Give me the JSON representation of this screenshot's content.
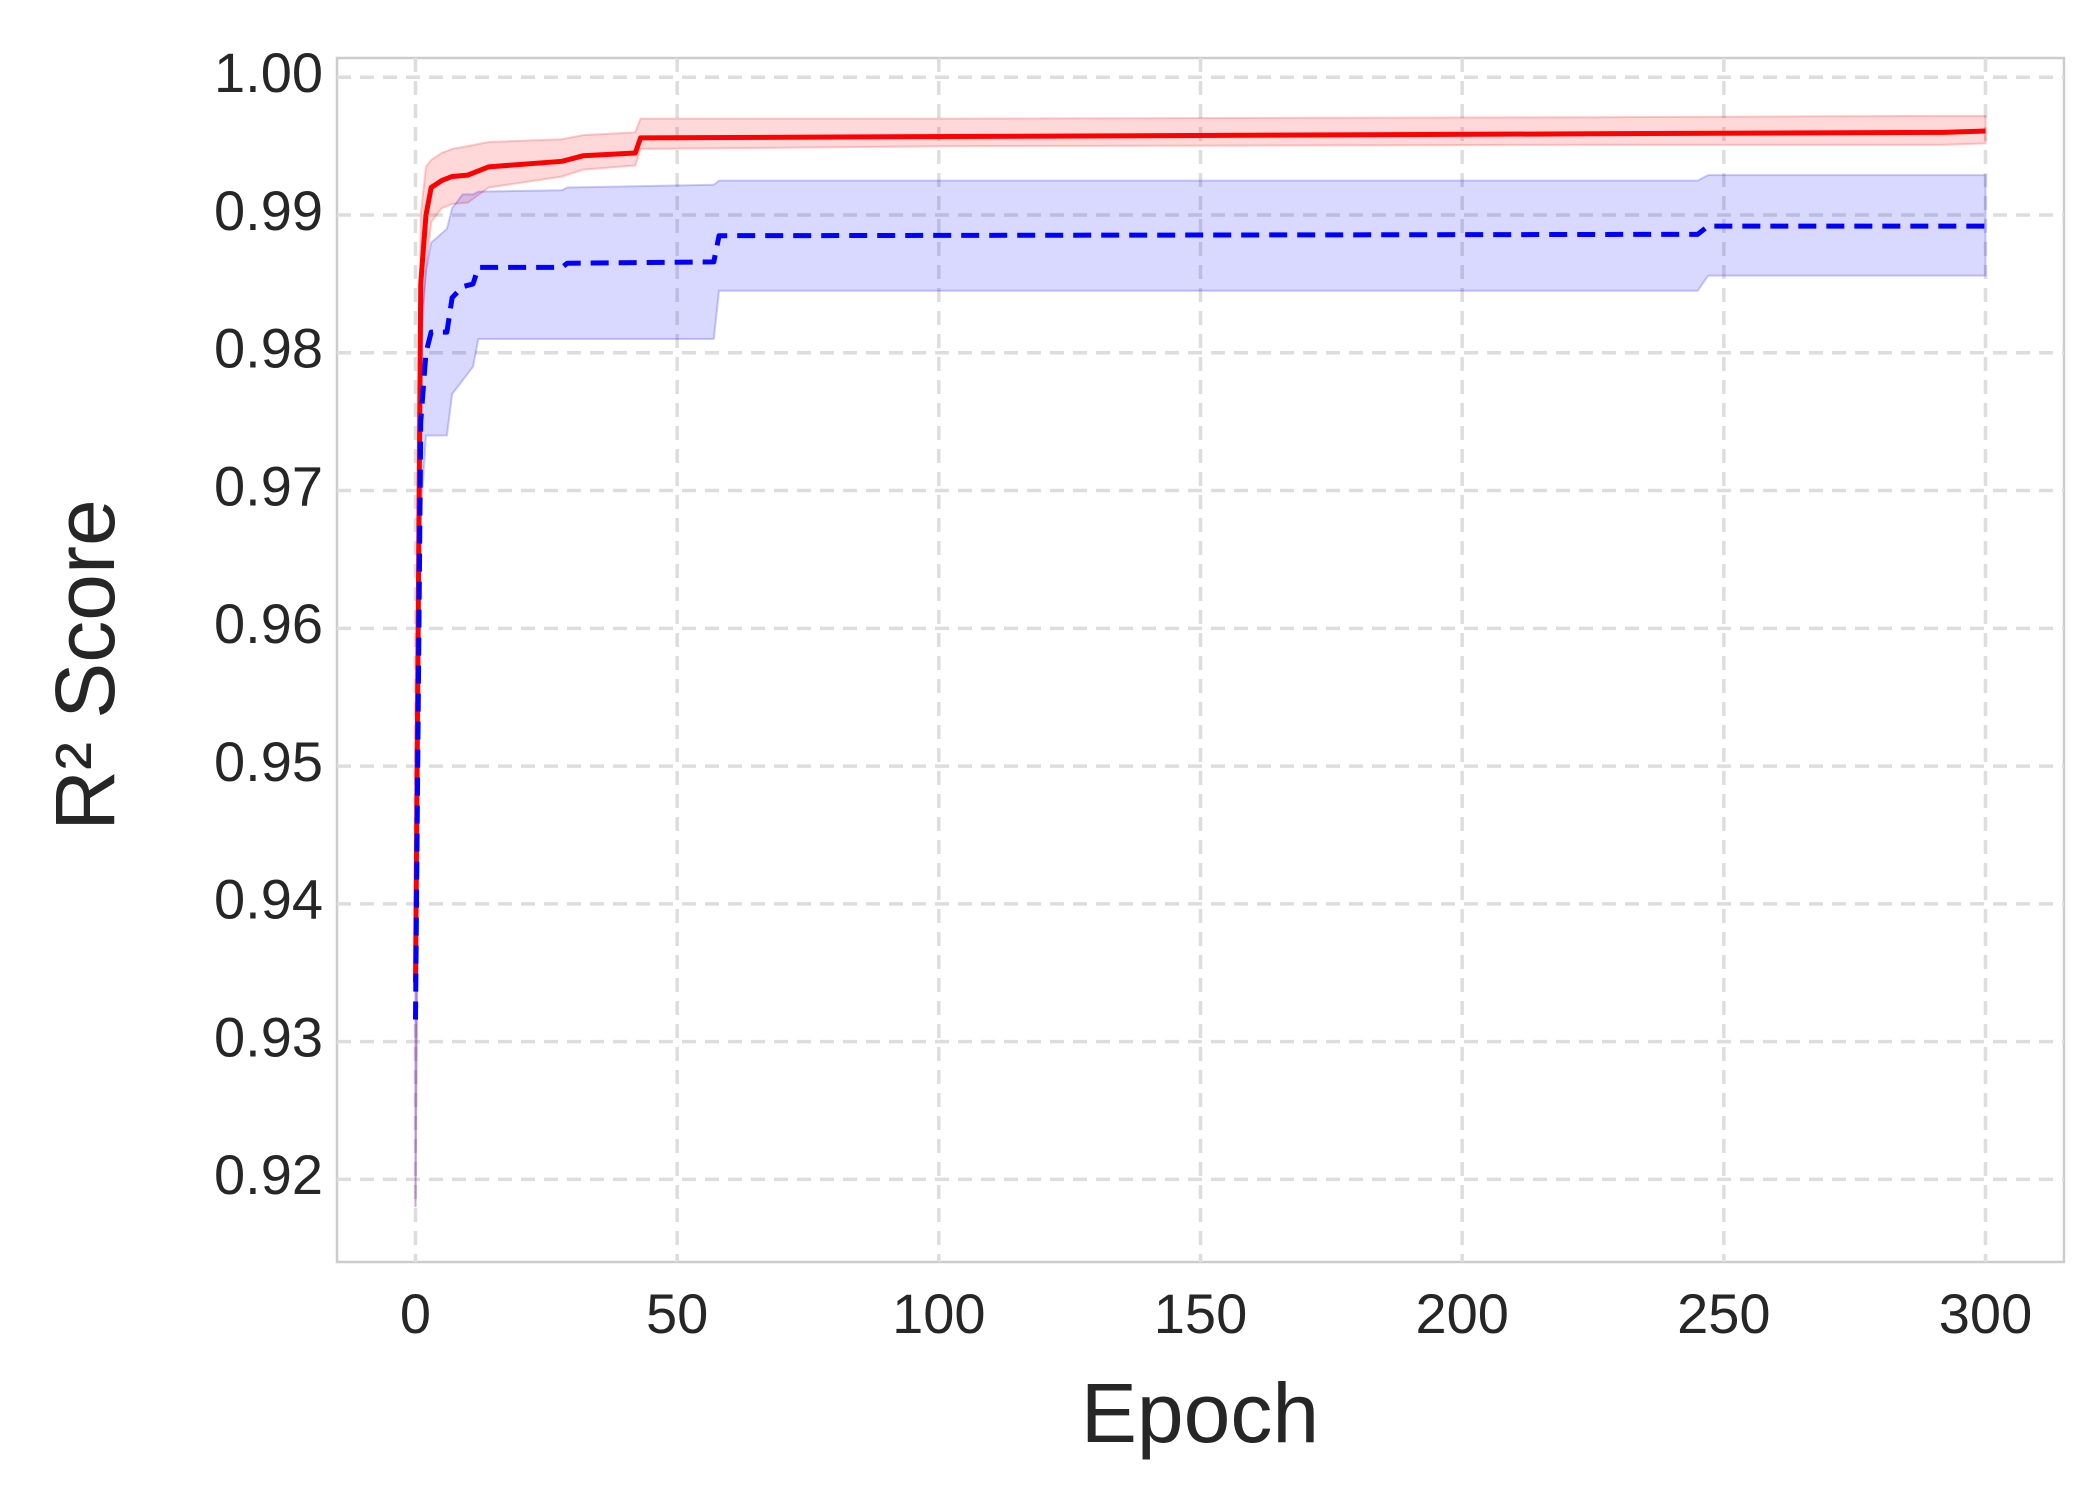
{
  "chart_data": {
    "type": "line",
    "xlabel": "Epoch",
    "ylabel": "R² Score",
    "xlim": [
      -15,
      315
    ],
    "xticks": [
      0,
      50,
      100,
      150,
      200,
      250,
      300
    ],
    "ylim": [
      0.914,
      1.0014
    ],
    "yticks": [
      0.92,
      0.93,
      0.94,
      0.95,
      0.96,
      0.97,
      0.98,
      0.99,
      {
        "value": 1,
        "label": "1.00"
      }
    ],
    "grid": true,
    "series": [
      {
        "color": "#ff0000",
        "linestyle": "solid",
        "x": [
          0,
          1,
          2,
          3,
          5,
          7,
          10,
          14,
          28,
          32,
          42,
          43,
          103,
          225,
          292,
          300
        ],
        "values": [
          0.9343,
          0.985,
          0.99,
          0.992,
          0.9925,
          0.9928,
          0.9929,
          0.9935,
          0.9939,
          0.9943,
          0.9945,
          0.9956,
          0.9957,
          0.9959,
          0.996,
          0.9961
        ],
        "lower": [
          0.918,
          0.98,
          0.986,
          0.9895,
          0.9905,
          0.9908,
          0.9909,
          0.992,
          0.9928,
          0.9933,
          0.9936,
          0.9948,
          0.995,
          0.9951,
          0.9951,
          0.9952
        ],
        "upper": [
          0.95,
          0.99,
          0.9935,
          0.994,
          0.9945,
          0.9948,
          0.995,
          0.9953,
          0.9955,
          0.9958,
          0.996,
          0.997,
          0.997,
          0.9971,
          0.9972,
          0.9972
        ]
      },
      {
        "color": "#0000ff",
        "linestyle": "dashed",
        "x": [
          0,
          1,
          2,
          3,
          6,
          7,
          9,
          11,
          12,
          28,
          29,
          57,
          58,
          245,
          247,
          300
        ],
        "values": [
          0.9316,
          0.975,
          0.98,
          0.9815,
          0.9815,
          0.984,
          0.9848,
          0.985,
          0.9862,
          0.9862,
          0.9865,
          0.9866,
          0.9885,
          0.9886,
          0.9892,
          0.9892
        ],
        "lower": [
          0.918,
          0.968,
          0.974,
          0.974,
          0.974,
          0.977,
          0.978,
          0.979,
          0.981,
          0.981,
          0.981,
          0.981,
          0.9845,
          0.9845,
          0.9856,
          0.9856
        ],
        "upper": [
          0.94,
          0.982,
          0.986,
          0.988,
          0.989,
          0.9905,
          0.9915,
          0.9915,
          0.9917,
          0.9918,
          0.992,
          0.9922,
          0.9925,
          0.9925,
          0.9929,
          0.9929
        ]
      }
    ]
  }
}
